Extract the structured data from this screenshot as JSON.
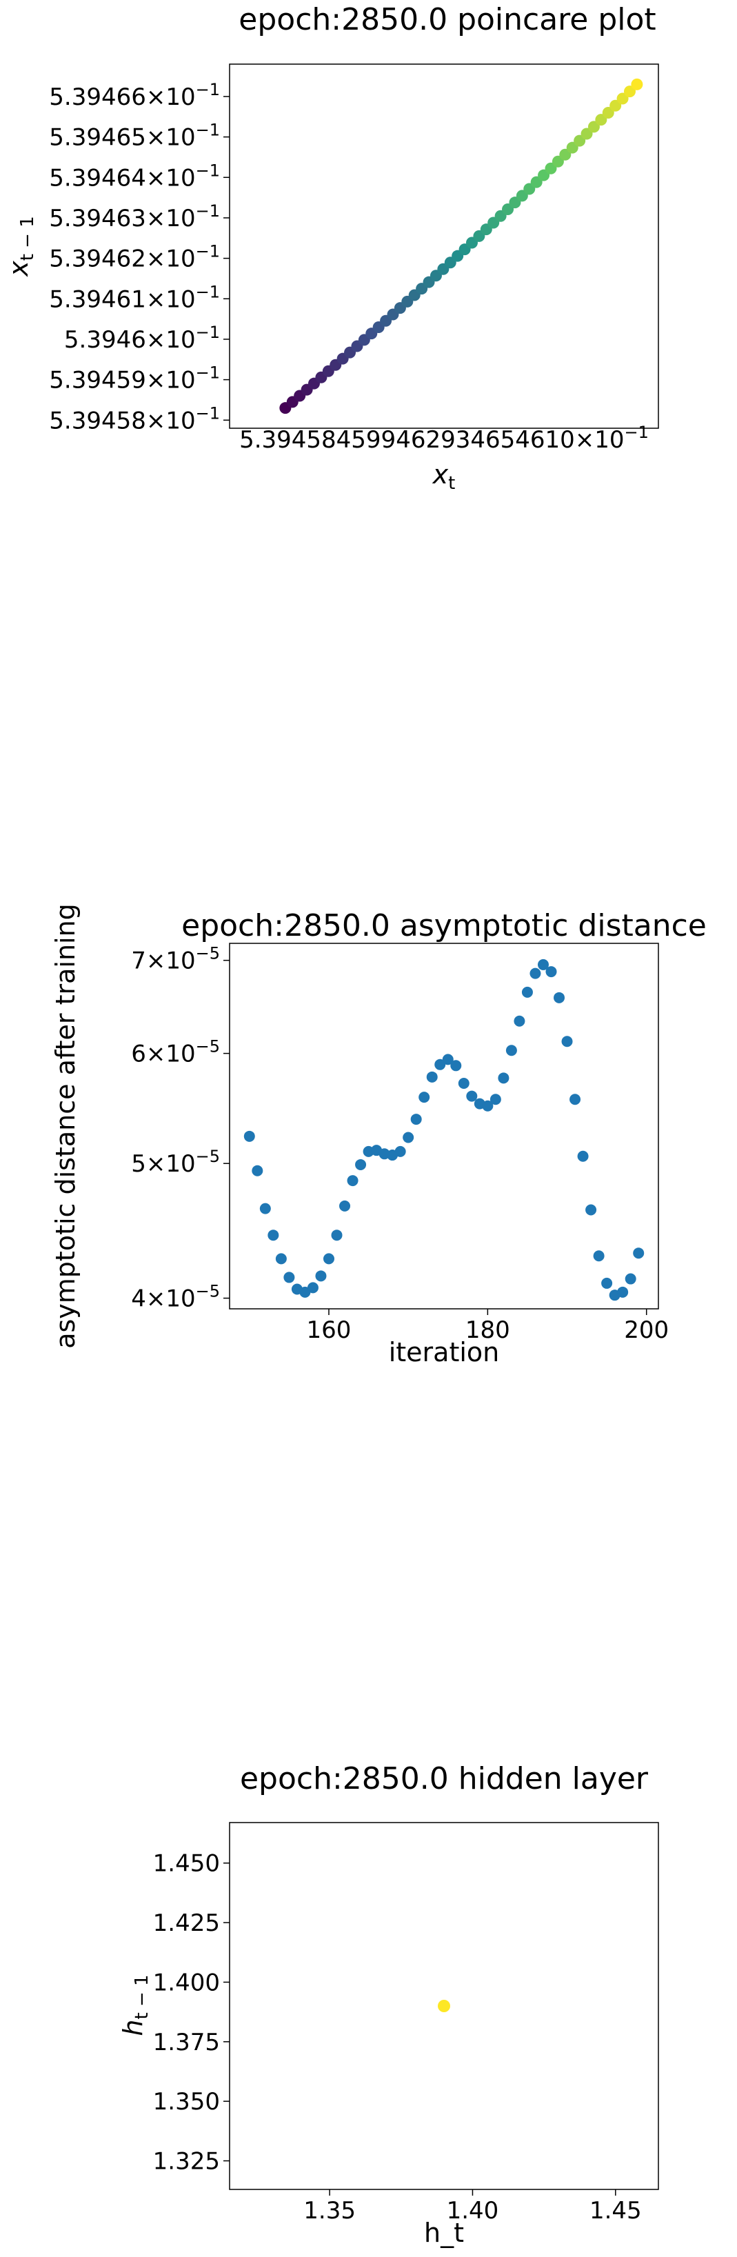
{
  "chart_data": [
    {
      "type": "scatter",
      "title": "epoch:2850.0 poincare plot",
      "xlabel": "x_t",
      "ylabel": "x_{t-1}",
      "xlim": [
        0.539457,
        0.539467
      ],
      "ylim": [
        0.5394578,
        0.5394668
      ],
      "yticks": [
        {
          "value": 0.539458,
          "base": "5.39458",
          "exp": "−1"
        },
        {
          "value": 0.539459,
          "base": "5.39459",
          "exp": "−1"
        },
        {
          "value": 0.53946,
          "base": "5.3946",
          "exp": "−1"
        },
        {
          "value": 0.539461,
          "base": "5.39461",
          "exp": "−1"
        },
        {
          "value": 0.539462,
          "base": "5.39462",
          "exp": "−1"
        },
        {
          "value": 0.539463,
          "base": "5.39463",
          "exp": "−1"
        },
        {
          "value": 0.539464,
          "base": "5.39464",
          "exp": "−1"
        },
        {
          "value": 0.539465,
          "base": "5.39465",
          "exp": "−1"
        },
        {
          "value": 0.539466,
          "base": "5.39466",
          "exp": "−1"
        }
      ],
      "xtick_text": "5.394584599462934654610",
      "xtick_suffix": "−1",
      "colormap": "viridis",
      "x_start": 0.5394583,
      "x_end": 0.5394665,
      "y_start": 0.5394583,
      "y_end": 0.5394663,
      "n_points": 50
    },
    {
      "type": "scatter",
      "title": "epoch:2850.0 asymptotic distance",
      "xlabel": "iteration",
      "ylabel": "asymptotic distance after training",
      "xlim": [
        147.5,
        201.5
      ],
      "ylim": [
        3.93e-05,
        7.2e-05
      ],
      "yscale": "log",
      "color": "#1f77b4",
      "xticks": [
        {
          "value": 160,
          "label": "160"
        },
        {
          "value": 180,
          "label": "180"
        },
        {
          "value": 200,
          "label": "200"
        }
      ],
      "yticks": [
        {
          "value": 4e-05,
          "base": "4",
          "exp": "−5"
        },
        {
          "value": 5e-05,
          "base": "5",
          "exp": "−5"
        },
        {
          "value": 6e-05,
          "base": "6",
          "exp": "−5"
        },
        {
          "value": 7e-05,
          "base": "7",
          "exp": "−5"
        }
      ],
      "x": [
        150,
        151,
        152,
        153,
        154,
        155,
        156,
        157,
        158,
        159,
        160,
        161,
        162,
        163,
        164,
        165,
        166,
        167,
        168,
        169,
        170,
        171,
        172,
        173,
        174,
        175,
        176,
        177,
        178,
        179,
        180,
        181,
        182,
        183,
        184,
        185,
        186,
        187,
        188,
        189,
        190,
        191,
        192,
        193,
        194,
        195,
        196,
        197,
        198,
        199
      ],
      "y": [
        5.23e-05,
        4.94e-05,
        4.64e-05,
        4.44e-05,
        4.27e-05,
        4.14e-05,
        4.06e-05,
        4.04e-05,
        4.07e-05,
        4.15e-05,
        4.27e-05,
        4.44e-05,
        4.66e-05,
        4.86e-05,
        4.99e-05,
        5.1e-05,
        5.11e-05,
        5.08e-05,
        5.07e-05,
        5.1e-05,
        5.22e-05,
        5.38e-05,
        5.58e-05,
        5.77e-05,
        5.89e-05,
        5.94e-05,
        5.88e-05,
        5.71e-05,
        5.59e-05,
        5.52e-05,
        5.5e-05,
        5.56e-05,
        5.76e-05,
        6.03e-05,
        6.33e-05,
        6.64e-05,
        6.85e-05,
        6.95e-05,
        6.87e-05,
        6.58e-05,
        6.12e-05,
        5.56e-05,
        5.06e-05,
        4.63e-05,
        4.29e-05,
        4.1e-05,
        4.02e-05,
        4.04e-05,
        4.13e-05,
        4.31e-05
      ]
    },
    {
      "type": "scatter",
      "title": "epoch:2850.0 hidden layer",
      "xlabel": "h_t",
      "ylabel": "h_{t-1}",
      "xlim": [
        1.315,
        1.465
      ],
      "ylim": [
        1.313,
        1.467
      ],
      "color": "#fde725",
      "xticks": [
        {
          "value": 1.35,
          "label": "1.35"
        },
        {
          "value": 1.4,
          "label": "1.40"
        },
        {
          "value": 1.45,
          "label": "1.45"
        }
      ],
      "yticks": [
        {
          "value": 1.325,
          "label": "1.325"
        },
        {
          "value": 1.35,
          "label": "1.350"
        },
        {
          "value": 1.375,
          "label": "1.375"
        },
        {
          "value": 1.4,
          "label": "1.400"
        },
        {
          "value": 1.425,
          "label": "1.425"
        },
        {
          "value": 1.45,
          "label": "1.450"
        }
      ],
      "x": [
        1.39
      ],
      "y": [
        1.39
      ]
    }
  ]
}
